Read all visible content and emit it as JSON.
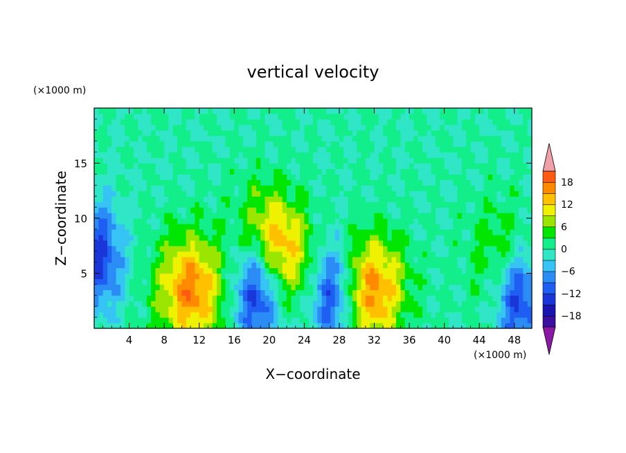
{
  "chart_data": {
    "type": "heatmap",
    "title": "vertical velocity",
    "xlabel": "X−coordinate",
    "ylabel": "Z−coordinate",
    "x_unit": "(×1000 m)",
    "y_unit": "(×1000 m)",
    "xlim": [
      0,
      50
    ],
    "ylim": [
      0,
      20
    ],
    "x_ticks": [
      "4",
      "8",
      "12",
      "16",
      "20",
      "24",
      "28",
      "32",
      "36",
      "40",
      "44",
      "48"
    ],
    "y_ticks": [
      "5",
      "10",
      "15"
    ],
    "colorbar": {
      "levels": [
        -21,
        -18,
        -15,
        -12,
        -9,
        -6,
        -3,
        0,
        3,
        6,
        9,
        12,
        15,
        18,
        21
      ],
      "tick_labels": [
        "18",
        "12",
        "6",
        "0",
        "−6",
        "−12",
        "−18"
      ],
      "colors": [
        "#8a1aa6",
        "#3b0fa0",
        "#1a14b0",
        "#1a36d8",
        "#1e5ef2",
        "#2b8cf6",
        "#36c4f4",
        "#2fe6c6",
        "#12ee8a",
        "#00e600",
        "#9be600",
        "#eef200",
        "#ffc000",
        "#ff8a00",
        "#ff5a14",
        "#ff2200",
        "#f0a0a8"
      ],
      "extend": "both"
    },
    "features": [
      {
        "kind": "updraft",
        "x": 11,
        "z": 3.5,
        "max": 17
      },
      {
        "kind": "updraft",
        "x": 31.8,
        "z": 3.5,
        "max": 16
      },
      {
        "kind": "updraft",
        "x": 21.2,
        "z": 7.8,
        "max": 14
      },
      {
        "kind": "updraft",
        "x": 46.5,
        "z": 6.8,
        "max": 6
      },
      {
        "kind": "downdraft",
        "x": 0.6,
        "z": 6.5,
        "min": -13
      },
      {
        "kind": "downdraft",
        "x": 18.5,
        "z": 3.0,
        "min": -13
      },
      {
        "kind": "downdraft",
        "x": 27.2,
        "z": 3.0,
        "min": -14
      },
      {
        "kind": "downdraft",
        "x": 48.5,
        "z": 2.8,
        "min": -14
      }
    ]
  }
}
